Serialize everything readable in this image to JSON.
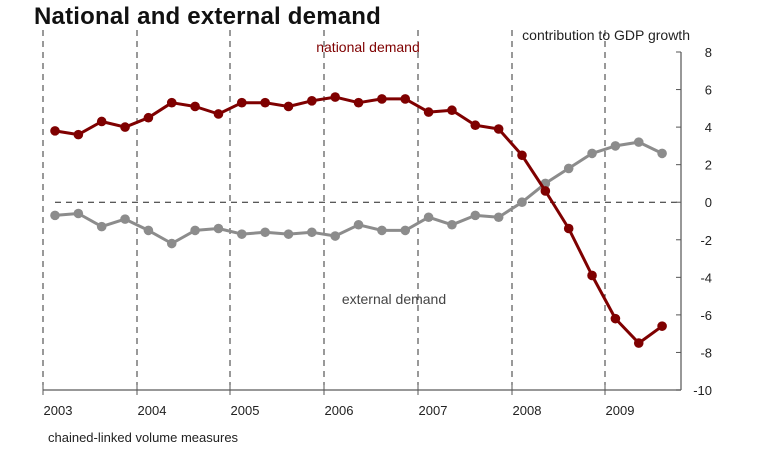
{
  "title": "National and external demand",
  "chart_data": {
    "type": "line",
    "title": "National and external demand",
    "ylabel": "contribution to GDP growth",
    "footnote": "chained-linked volume measures",
    "ylim": [
      -10,
      8
    ],
    "yticks": [
      8,
      6,
      4,
      2,
      0,
      -2,
      -4,
      -6,
      -8,
      -10
    ],
    "ytick_labels": [
      "8",
      "6",
      "4",
      "2",
      "0",
      "-2",
      "-4",
      "-6",
      "-8",
      "-10"
    ],
    "y_axis_position": "right",
    "x_ticks": [
      "2003",
      "2004",
      "2005",
      "2006",
      "2007",
      "2008",
      "2009"
    ],
    "x_range": [
      "2003Q1",
      "2009Q3"
    ],
    "grid": "vertical dashed lines at year boundaries, dashed zero line",
    "legend": "inline labels",
    "x": [
      "2003Q1",
      "2003Q2",
      "2003Q3",
      "2003Q4",
      "2004Q1",
      "2004Q2",
      "2004Q3",
      "2004Q4",
      "2005Q1",
      "2005Q2",
      "2005Q3",
      "2005Q4",
      "2006Q1",
      "2006Q2",
      "2006Q3",
      "2006Q4",
      "2007Q1",
      "2007Q2",
      "2007Q3",
      "2007Q4",
      "2008Q1",
      "2008Q2",
      "2008Q3",
      "2008Q4",
      "2009Q1",
      "2009Q2",
      "2009Q3"
    ],
    "series": [
      {
        "name": "national demand",
        "color": "#7f0000",
        "values": [
          3.8,
          3.6,
          4.3,
          4.0,
          4.5,
          5.3,
          5.1,
          4.7,
          5.3,
          5.3,
          5.1,
          5.4,
          5.6,
          5.3,
          5.5,
          5.5,
          4.8,
          4.9,
          4.1,
          3.9,
          2.5,
          0.6,
          -1.4,
          -3.9,
          -6.2,
          -7.5,
          -6.6
        ]
      },
      {
        "name": "external demand",
        "color": "#8c8c8c",
        "values": [
          -0.7,
          -0.6,
          -1.3,
          -0.9,
          -1.5,
          -2.2,
          -1.5,
          -1.4,
          -1.7,
          -1.6,
          -1.7,
          -1.6,
          -1.8,
          -1.2,
          -1.5,
          -1.5,
          -0.8,
          -1.2,
          -0.7,
          -0.8,
          0.0,
          1.0,
          1.8,
          2.6,
          3.0,
          3.2,
          2.6
        ]
      }
    ],
    "annotations": [
      {
        "text": "national demand",
        "series": "national demand"
      },
      {
        "text": "external demand",
        "series": "external demand"
      }
    ]
  }
}
